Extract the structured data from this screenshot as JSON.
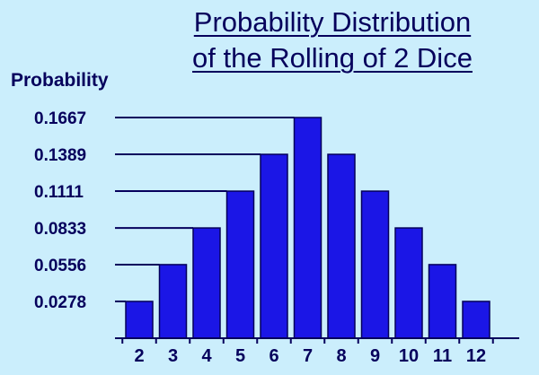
{
  "chart_data": {
    "type": "bar",
    "title_line1": "Probability Distribution",
    "title_line2": "of the Rolling of 2 Dice",
    "ylabel": "Probability",
    "xlabel": "",
    "categories": [
      "2",
      "3",
      "4",
      "5",
      "6",
      "7",
      "8",
      "9",
      "10",
      "11",
      "12"
    ],
    "values": [
      0.0278,
      0.0556,
      0.0833,
      0.1111,
      0.1389,
      0.1667,
      0.1389,
      0.1111,
      0.0833,
      0.0556,
      0.0278
    ],
    "yticks": [
      "0.0278",
      "0.0556",
      "0.0833",
      "0.1111",
      "0.1389",
      "0.1667"
    ],
    "ylim": [
      0,
      0.1667
    ],
    "grid": "leader lines from each y tick to the bar at that level",
    "legend": "none",
    "bar_color": "#1b16e6",
    "bar_outline_color": "#04005a",
    "axis_color": "#06005c",
    "background_color": "#cbeefc"
  }
}
